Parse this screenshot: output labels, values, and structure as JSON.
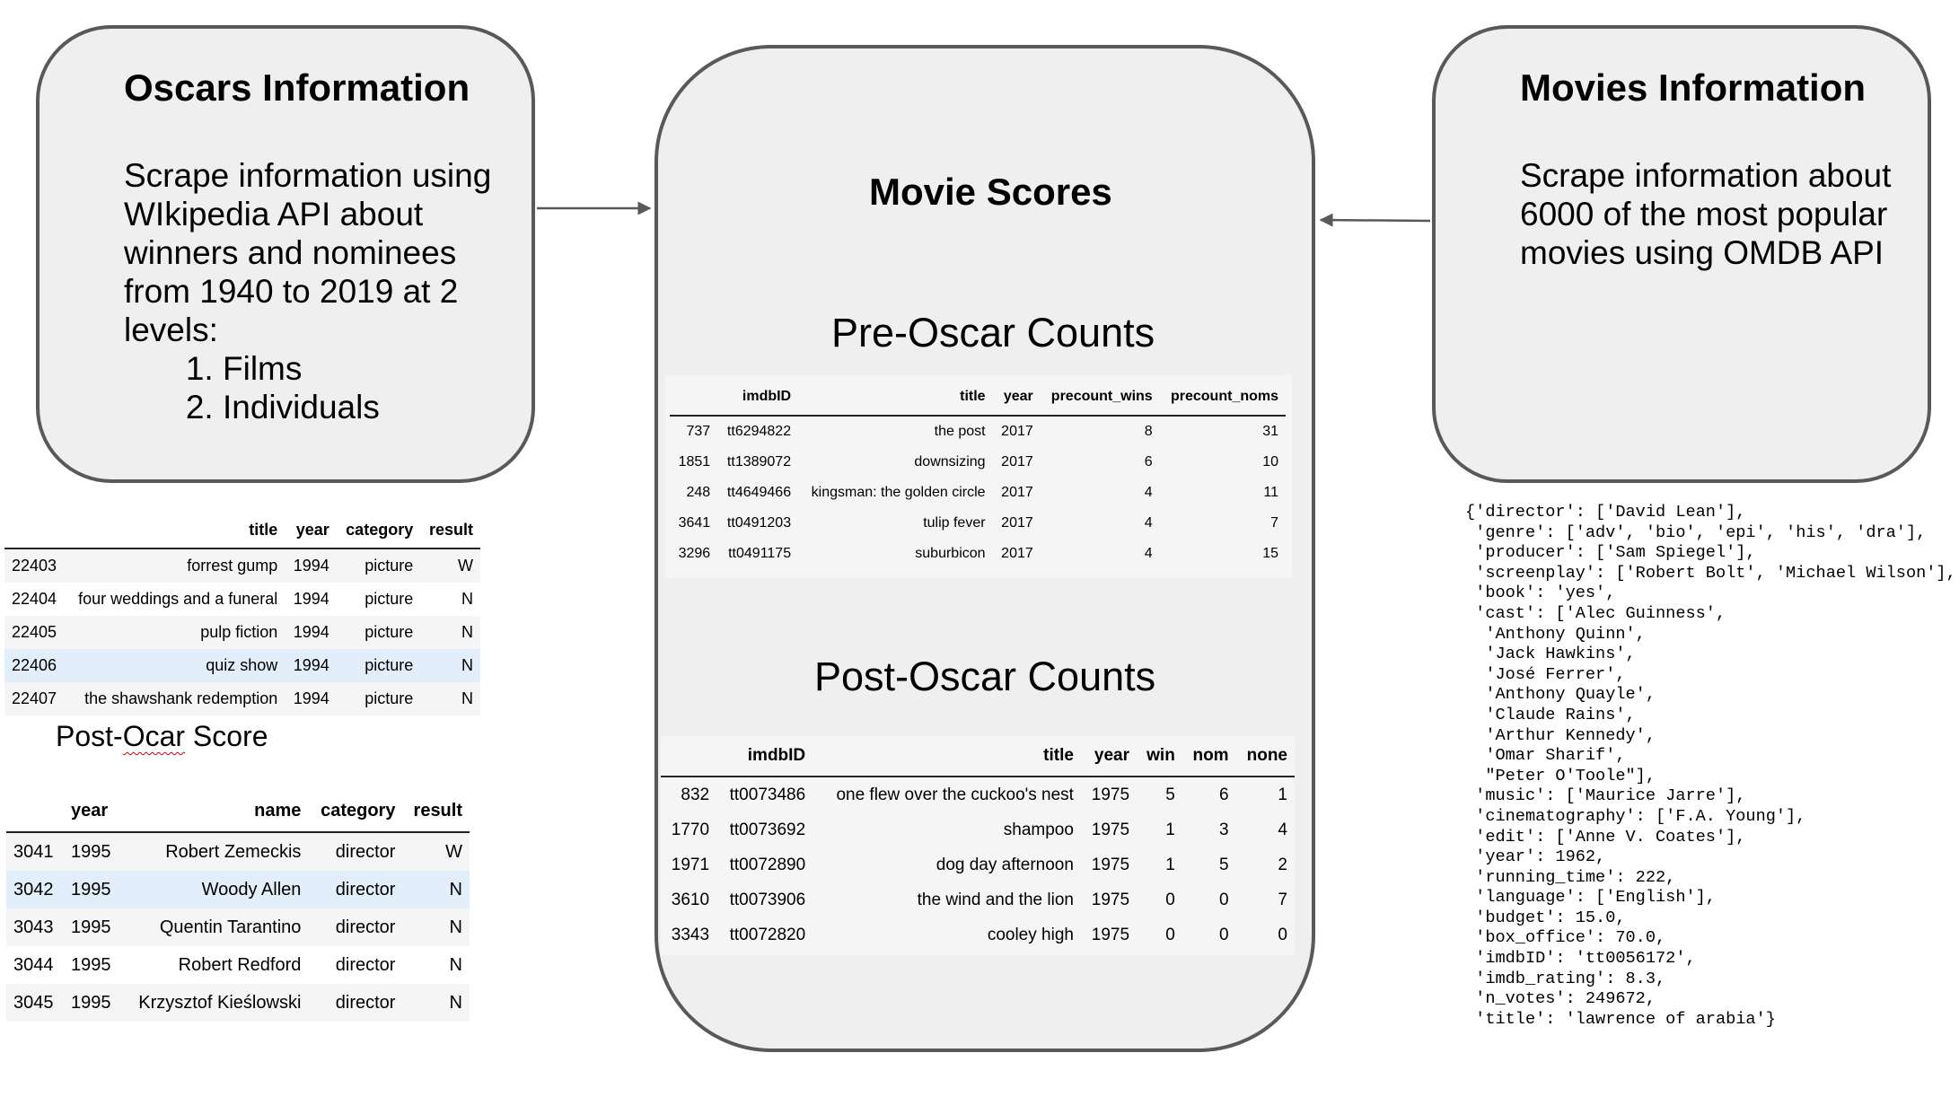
{
  "oscars_box": {
    "title": "Oscars Information",
    "text": "Scrape information using WIkipedia API about winners and nominees from 1940 to 2019 at 2 levels:",
    "items": [
      "Films",
      "Individuals"
    ]
  },
  "movies_box": {
    "title": "Movies Information",
    "text": "Scrape information about 6000 of the most popular movies using OMDB API"
  },
  "center_box": {
    "title": "Movie Scores",
    "pre_title": "Pre-Oscar Counts",
    "post_title": "Post-Oscar Counts"
  },
  "pre_table": {
    "columns": [
      "",
      "imdbID",
      "title",
      "year",
      "precount_wins",
      "precount_noms"
    ],
    "rows": [
      [
        "737",
        "tt6294822",
        "the post",
        "2017",
        "8",
        "31"
      ],
      [
        "1851",
        "tt1389072",
        "downsizing",
        "2017",
        "6",
        "10"
      ],
      [
        "248",
        "tt4649466",
        "kingsman: the golden circle",
        "2017",
        "4",
        "11"
      ],
      [
        "3641",
        "tt0491203",
        "tulip fever",
        "2017",
        "4",
        "7"
      ],
      [
        "3296",
        "tt0491175",
        "suburbicon",
        "2017",
        "4",
        "15"
      ]
    ]
  },
  "post_table": {
    "columns": [
      "",
      "imdbID",
      "title",
      "year",
      "win",
      "nom",
      "none"
    ],
    "rows": [
      [
        "832",
        "tt0073486",
        "one flew over the cuckoo's nest",
        "1975",
        "5",
        "6",
        "1"
      ],
      [
        "1770",
        "tt0073692",
        "shampoo",
        "1975",
        "1",
        "3",
        "4"
      ],
      [
        "1971",
        "tt0072890",
        "dog day afternoon",
        "1975",
        "1",
        "5",
        "2"
      ],
      [
        "3610",
        "tt0073906",
        "the wind and the lion",
        "1975",
        "0",
        "0",
        "7"
      ],
      [
        "3343",
        "tt0072820",
        "cooley high",
        "1975",
        "0",
        "0",
        "0"
      ]
    ]
  },
  "films_table": {
    "columns": [
      "",
      "title",
      "year",
      "category",
      "result"
    ],
    "rows": [
      [
        "22403",
        "forrest gump",
        "1994",
        "picture",
        "W"
      ],
      [
        "22404",
        "four weddings and a funeral",
        "1994",
        "picture",
        "N"
      ],
      [
        "22405",
        "pulp fiction",
        "1994",
        "picture",
        "N"
      ],
      [
        "22406",
        "quiz show",
        "1994",
        "picture",
        "N"
      ],
      [
        "22407",
        "the shawshank redemption",
        "1994",
        "picture",
        "N"
      ]
    ]
  },
  "post_ocar_label": {
    "before": "Post-",
    "misspelled": "Ocar",
    "after": " Score"
  },
  "individuals_table": {
    "columns": [
      "",
      "year",
      "name",
      "category",
      "result"
    ],
    "rows": [
      [
        "3041",
        "1995",
        "Robert Zemeckis",
        "director",
        "W"
      ],
      [
        "3042",
        "1995",
        "Woody Allen",
        "director",
        "N"
      ],
      [
        "3043",
        "1995",
        "Quentin Tarantino",
        "director",
        "N"
      ],
      [
        "3044",
        "1995",
        "Robert Redford",
        "director",
        "N"
      ],
      [
        "3045",
        "1995",
        "Krzysztof Kieślowski",
        "director",
        "N"
      ]
    ]
  },
  "json_sample": "{'director': ['David Lean'],\n 'genre': ['adv', 'bio', 'epi', 'his', 'dra'],\n 'producer': ['Sam Spiegel'],\n 'screenplay': ['Robert Bolt', 'Michael Wilson'],\n 'book': 'yes',\n 'cast': ['Alec Guinness',\n  'Anthony Quinn',\n  'Jack Hawkins',\n  'José Ferrer',\n  'Anthony Quayle',\n  'Claude Rains',\n  'Arthur Kennedy',\n  'Omar Sharif',\n  \"Peter O'Toole\"],\n 'music': ['Maurice Jarre'],\n 'cinematography': ['F.A. Young'],\n 'edit': ['Anne V. Coates'],\n 'year': 1962,\n 'running_time': 222,\n 'language': ['English'],\n 'budget': 15.0,\n 'box_office': 70.0,\n 'imdbID': 'tt0056172',\n 'imdb_rating': 8.3,\n 'n_votes': 249672,\n 'title': 'lawrence of arabia'}"
}
